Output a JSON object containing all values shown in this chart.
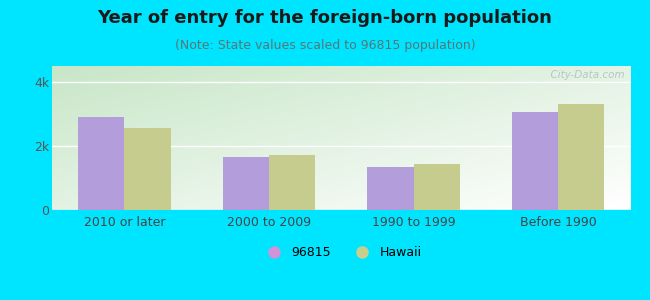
{
  "title": "Year of entry for the foreign-born population",
  "subtitle": "(Note: State values scaled to 96815 population)",
  "categories": [
    "2010 or later",
    "2000 to 2009",
    "1990 to 1999",
    "Before 1990"
  ],
  "series_96815": [
    2900,
    1650,
    1350,
    3050
  ],
  "series_hawaii": [
    2550,
    1720,
    1430,
    3300
  ],
  "bar_color_96815": "#b39ddb",
  "bar_color_hawaii": "#c5cc8e",
  "background_outer": "#00e5ff",
  "yticks": [
    0,
    2000,
    4000
  ],
  "ytick_labels": [
    "0",
    "2k",
    "4k"
  ],
  "ylim": [
    0,
    4500
  ],
  "legend_color_96815": "#ce93d8",
  "legend_color_hawaii": "#c8cf8e",
  "bar_width": 0.32,
  "watermark": "  City-Data.com",
  "title_fontsize": 13,
  "subtitle_fontsize": 9,
  "axis_fontsize": 9
}
